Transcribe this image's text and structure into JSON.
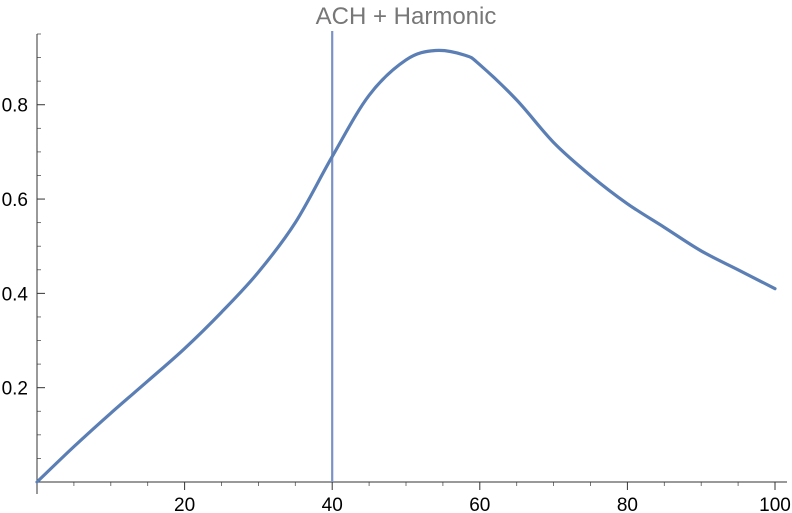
{
  "chart_data": {
    "type": "line",
    "title": "ACH + Harmonic",
    "xlabel": "",
    "ylabel": "",
    "xlim": [
      0,
      100
    ],
    "ylim": [
      0,
      0.95
    ],
    "x_ticks": [
      {
        "value": 20,
        "label": "20"
      },
      {
        "value": 40,
        "label": "40"
      },
      {
        "value": 60,
        "label": "60"
      },
      {
        "value": 80,
        "label": "80"
      },
      {
        "value": 100,
        "label": "100"
      }
    ],
    "y_ticks": [
      {
        "value": 0.2,
        "label": "0.2"
      },
      {
        "value": 0.4,
        "label": "0.4"
      },
      {
        "value": 0.6,
        "label": "0.6"
      },
      {
        "value": 0.8,
        "label": "0.8"
      }
    ],
    "x_minor_step": 5,
    "y_minor_step": 0.05,
    "reference_line": {
      "x": 40
    },
    "series": [
      {
        "color": "#5b7fb5",
        "x": [
          0,
          5,
          10,
          15,
          20,
          25,
          30,
          35,
          40,
          45,
          50,
          54,
          58,
          60,
          65,
          70,
          75,
          80,
          85,
          90,
          95,
          100
        ],
        "y": [
          0.0,
          0.075,
          0.146,
          0.214,
          0.283,
          0.36,
          0.445,
          0.55,
          0.69,
          0.82,
          0.895,
          0.915,
          0.905,
          0.885,
          0.81,
          0.72,
          0.65,
          0.59,
          0.54,
          0.49,
          0.45,
          0.41
        ]
      }
    ],
    "grid": false,
    "legend": "none"
  }
}
